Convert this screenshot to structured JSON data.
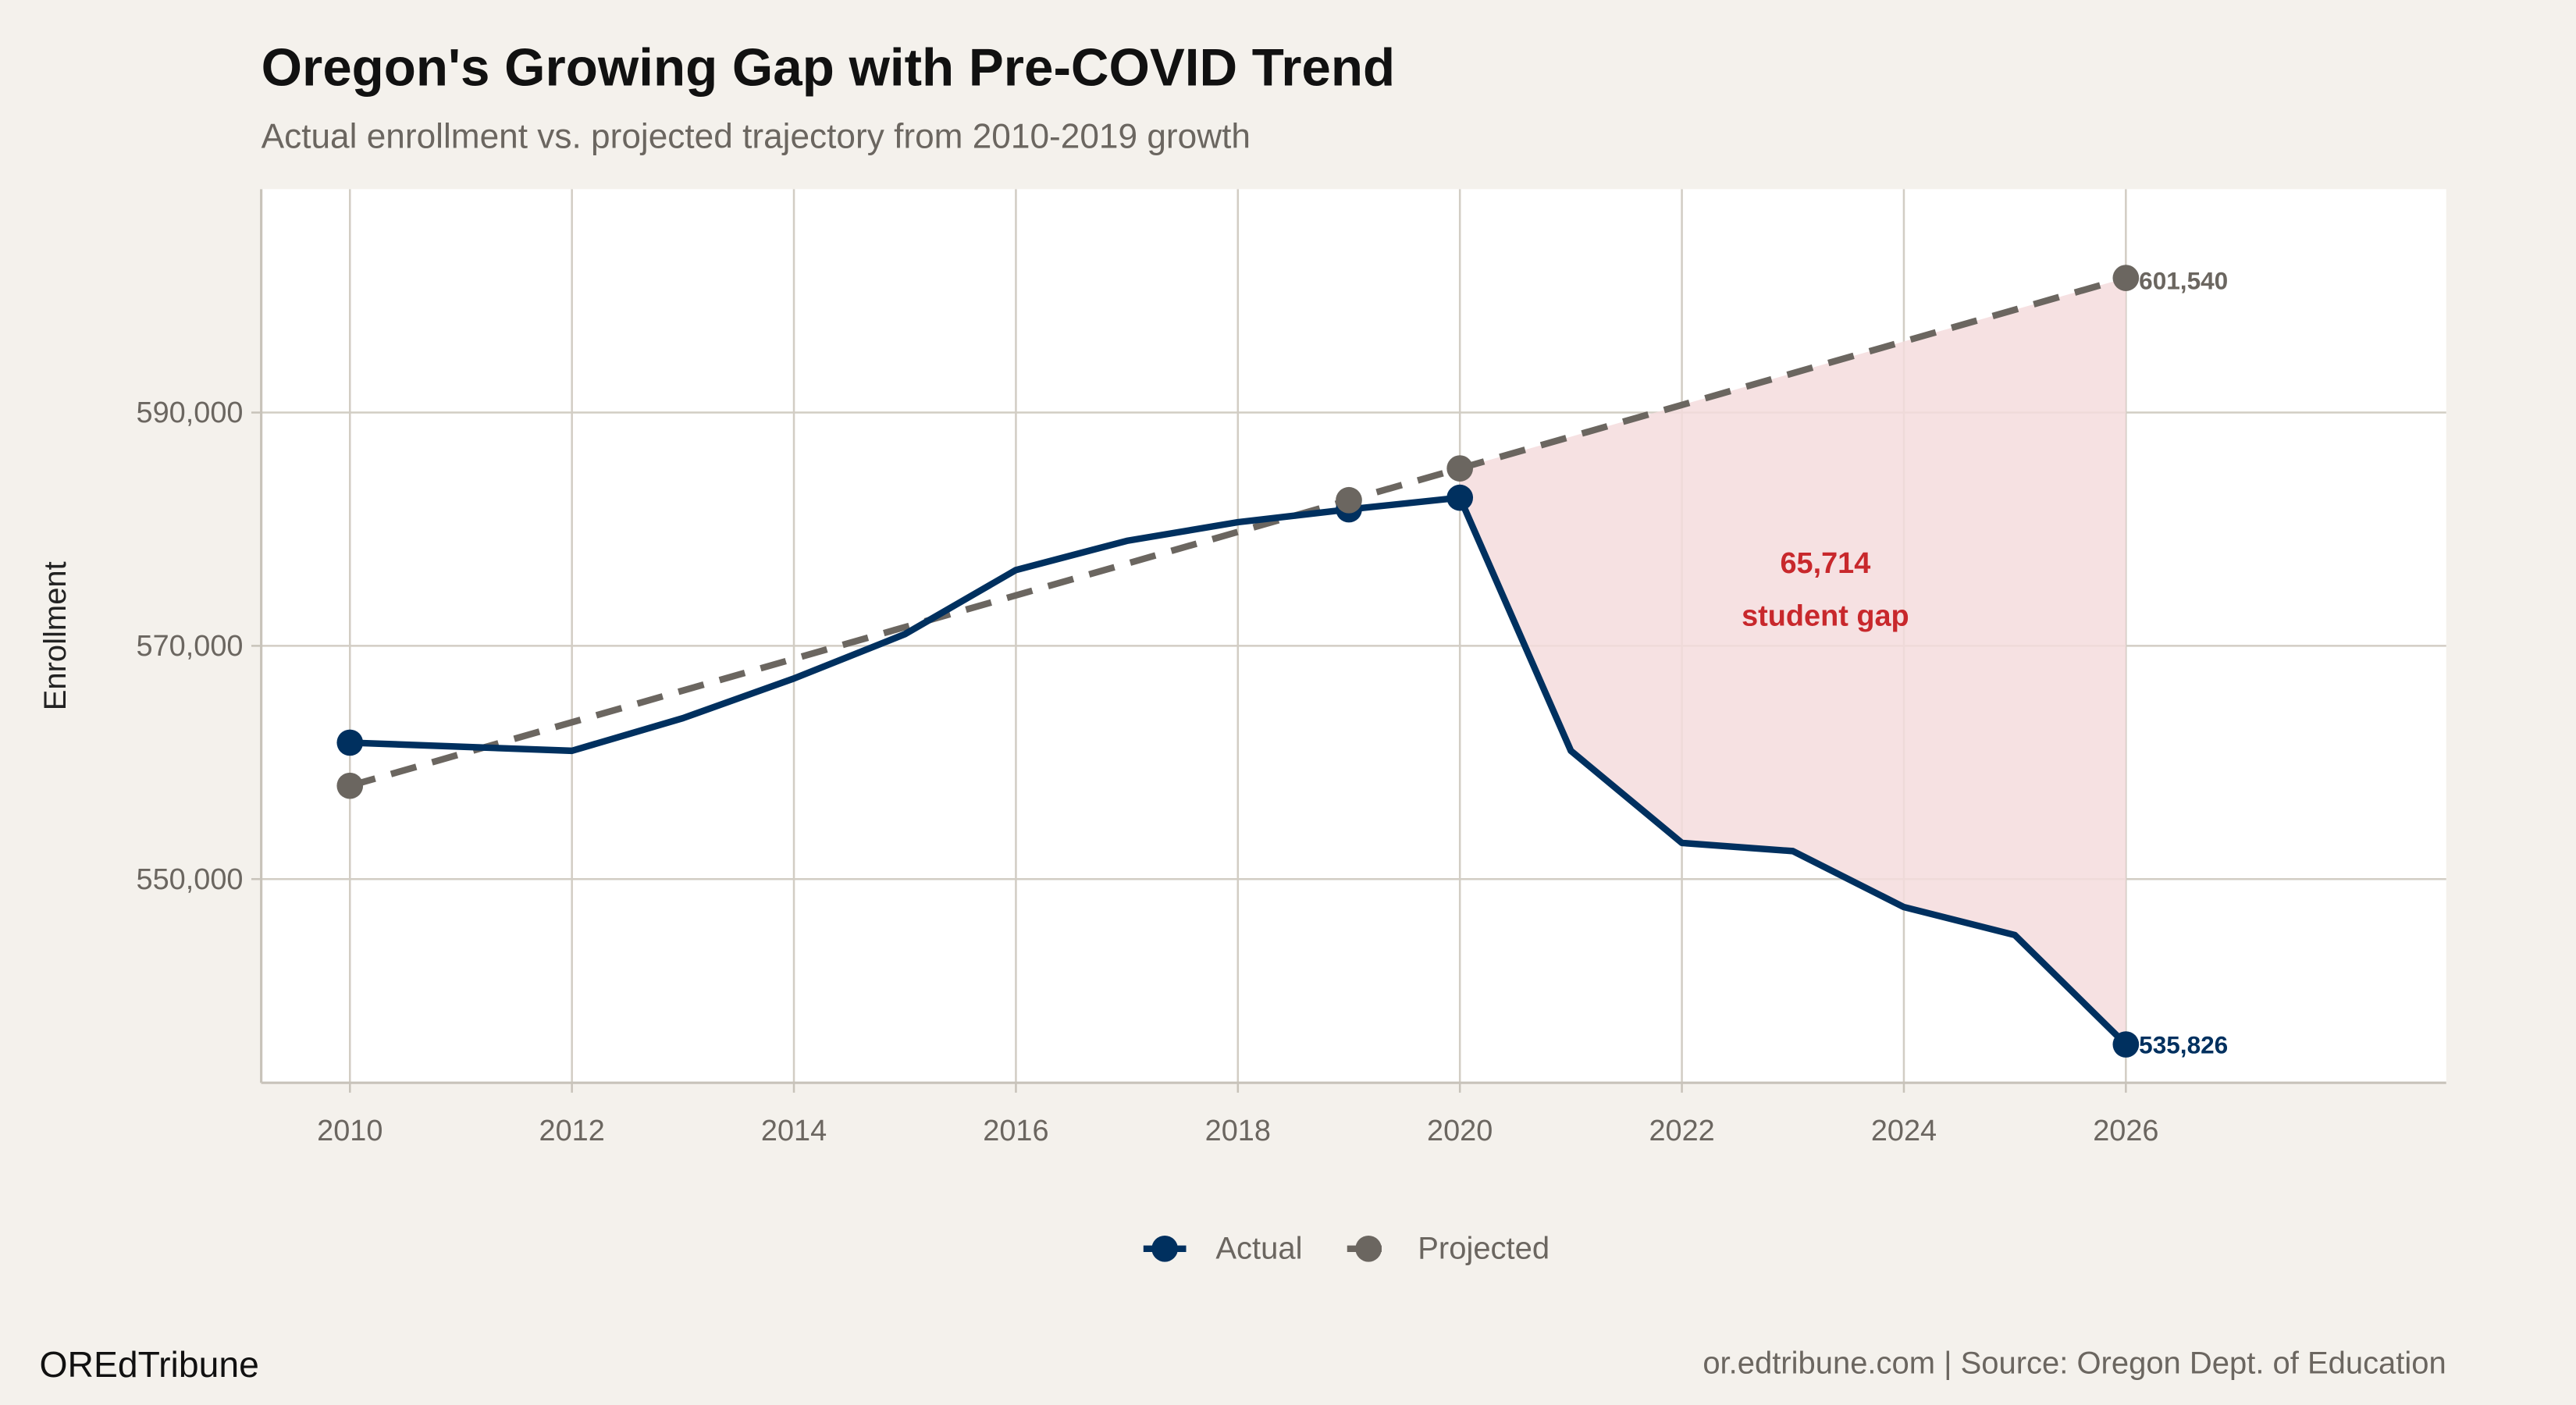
{
  "title": "Oregon's Growing Gap with Pre-COVID Trend",
  "subtitle": "Actual enrollment vs. projected trajectory from 2010-2019 growth",
  "brand": "OREdTribune",
  "source": "or.edtribune.com | Source: Oregon Dept. of Education",
  "colors": {
    "actual": "#00305f",
    "projected": "#6b6660",
    "gap_fill": "#f5dcdd",
    "gap_text": "#c8282c",
    "background": "#f4f1ec"
  },
  "chart_data": {
    "type": "line",
    "title": "Oregon's Growing Gap with Pre-COVID Trend",
    "xlabel": "",
    "ylabel": "Enrollment",
    "xlim": [
      2009.2,
      2029
    ],
    "ylim": [
      533000,
      609000
    ],
    "x_ticks": [
      "2010",
      "2012",
      "2014",
      "2016",
      "2018",
      "2020",
      "2022",
      "2024",
      "2026"
    ],
    "y_ticks": [
      "550,000",
      "570,000",
      "590,000"
    ],
    "y_tick_values": [
      550000,
      570000,
      590000
    ],
    "grid": true,
    "legend": "bottom",
    "series": [
      {
        "name": "Actual",
        "x": [
          2010,
          2012,
          2013,
          2014,
          2015,
          2016,
          2017,
          2018,
          2019,
          2020,
          2021,
          2022,
          2023,
          2024,
          2025,
          2026
        ],
        "y": [
          561700,
          561000,
          563800,
          567200,
          571000,
          576500,
          579000,
          580600,
          581700,
          582700,
          561000,
          553100,
          552400,
          547600,
          545200,
          535826
        ],
        "points_at": [
          2010,
          2019,
          2020,
          2026
        ]
      },
      {
        "name": "Projected",
        "style": "dashed",
        "x": [
          2010,
          2019,
          2020,
          2026
        ],
        "y": [
          558000,
          582490,
          585210,
          601540
        ],
        "points_at": [
          2010,
          2019,
          2020,
          2026
        ]
      }
    ],
    "end_labels": {
      "projected": "601,540",
      "actual": "535,826"
    },
    "annotation": {
      "value": "65,714",
      "text": "student gap",
      "x": 2023.5,
      "y": 573000
    }
  }
}
